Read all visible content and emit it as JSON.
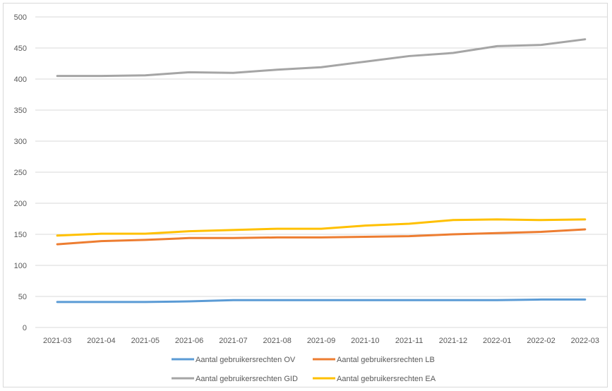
{
  "chart_data": {
    "type": "line",
    "title": "",
    "xlabel": "",
    "ylabel": "",
    "ylim": [
      0,
      500
    ],
    "ystep": 50,
    "grid": true,
    "legend_placement": "bottom",
    "categories": [
      "2021-03",
      "2021-04",
      "2021-05",
      "2021-06",
      "2021-07",
      "2021-08",
      "2021-09",
      "2021-10",
      "2021-11",
      "2021-12",
      "2022-01",
      "2022-02",
      "2022-03"
    ],
    "series": [
      {
        "name": "Aantal gebruikersrechten OV",
        "color": "#5b9bd5",
        "values": [
          41,
          41,
          41,
          42,
          44,
          44,
          44,
          44,
          44,
          44,
          44,
          45,
          45
        ]
      },
      {
        "name": "Aantal gebruikersrechten LB",
        "color": "#ed7d31",
        "values": [
          134,
          139,
          141,
          144,
          144,
          145,
          145,
          146,
          147,
          150,
          152,
          154,
          158
        ]
      },
      {
        "name": "Aantal gebruikersrechten GID",
        "color": "#a5a5a5",
        "values": [
          405,
          405,
          406,
          411,
          410,
          415,
          419,
          428,
          437,
          442,
          453,
          455,
          464
        ]
      },
      {
        "name": "Aantal gebruikersrechten EA",
        "color": "#ffc000",
        "values": [
          148,
          151,
          151,
          155,
          157,
          159,
          159,
          164,
          167,
          173,
          174,
          173,
          174
        ]
      }
    ]
  }
}
